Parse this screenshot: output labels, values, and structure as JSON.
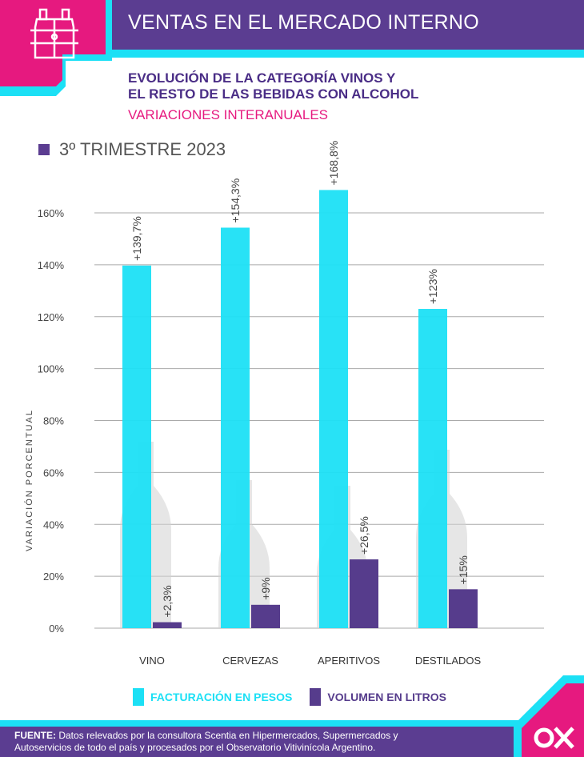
{
  "header": {
    "title": "VENTAS EN EL MERCADO INTERNO",
    "logo_icon": "wine-bottles-icon"
  },
  "subtitle": {
    "line1": "EVOLUCIÓN DE LA CATEGORÍA VINOS Y",
    "line2": "EL RESTO DE LAS BEBIDAS CON ALCOHOL",
    "variations": "VARIACIONES INTERANUALES"
  },
  "period": "3º TRIMESTRE 2023",
  "colors": {
    "purple": "#5b3d91",
    "cyan": "#1ce0f5",
    "magenta": "#e6197f",
    "bar_purple": "#563c8c"
  },
  "chart_data": {
    "type": "bar",
    "title": "3º TRIMESTRE 2023",
    "xlabel": "",
    "ylabel": "VARIACIÓN PORCENTUAL",
    "ylim": [
      0,
      160
    ],
    "yticks": [
      0,
      20,
      40,
      60,
      80,
      100,
      120,
      140,
      160
    ],
    "ytick_labels": [
      "0%",
      "20%",
      "40%",
      "60%",
      "80%",
      "100%",
      "120%",
      "140%",
      "160%"
    ],
    "categories": [
      "VINO",
      "CERVEZAS",
      "APERITIVOS",
      "DESTILADOS"
    ],
    "series": [
      {
        "name": "FACTURACIÓN EN PESOS",
        "color": "#1ce0f5",
        "values": [
          139.7,
          154.3,
          168.8,
          123
        ],
        "labels": [
          "+139,7%",
          "+154,3%",
          "+168,8%",
          "+123%"
        ]
      },
      {
        "name": "VOLUMEN EN LITROS",
        "color": "#563c8c",
        "values": [
          2.3,
          9,
          26.5,
          15
        ],
        "labels": [
          "+2,3%",
          "+9%",
          "+26,5%",
          "+15%"
        ]
      }
    ],
    "grid": true,
    "legend": "bottom"
  },
  "legend": {
    "items": [
      {
        "label": "FACTURACIÓN EN PESOS",
        "color": "#1ce0f5"
      },
      {
        "label": "VOLUMEN EN LITROS",
        "color": "#563c8c"
      }
    ]
  },
  "footer": {
    "source_label": "FUENTE:",
    "source_text": "Datos relevados por la consultora Scentia en Hipermercados, Supermercados y Autoservicios de todo el país y procesados por el Observatorio Vitivinícola Argentino.",
    "brand_icon": "ovx-logo-icon"
  }
}
